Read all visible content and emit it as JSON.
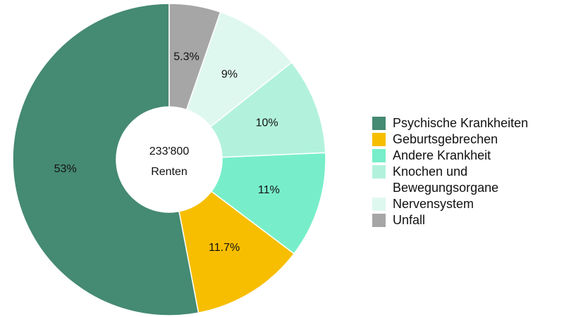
{
  "chart_data": {
    "type": "donut",
    "center_text": [
      "233'800",
      "Renten"
    ],
    "categories": [
      "Psychische Krankheiten",
      "Geburtsgebrechen",
      "Andere Krankheit",
      "Knochen und Bewegungsorgane",
      "Nervensystem",
      "Unfall"
    ],
    "values": [
      53,
      11.7,
      11,
      10,
      9,
      5.3
    ],
    "value_labels": [
      "53%",
      "11.7%",
      "11%",
      "10%",
      "9%",
      "5.3%"
    ],
    "colors": [
      "#458a73",
      "#f7be00",
      "#77eec9",
      "#b2f2dd",
      "#dff8ef",
      "#a6a6a6"
    ],
    "legend": "right"
  }
}
